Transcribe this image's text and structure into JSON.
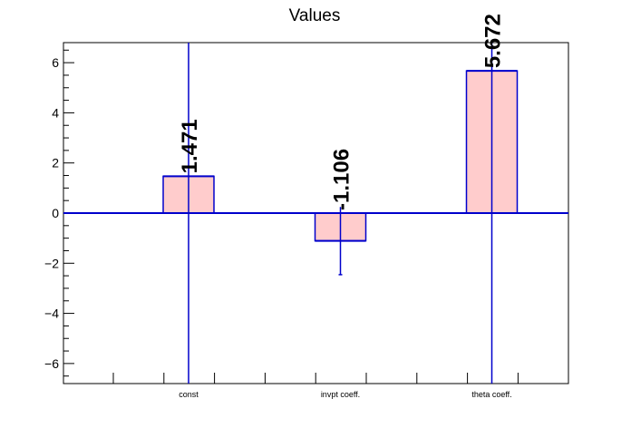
{
  "chart_data": {
    "type": "bar",
    "title": "Values",
    "categories": [
      "const",
      "invpt coeff.",
      "theta coeff."
    ],
    "values": [
      1.471,
      -1.106,
      5.672
    ],
    "value_labels": [
      "1.471",
      "-1.106",
      "5.672"
    ],
    "errors": [
      null,
      1.35,
      null
    ],
    "ylim": [
      -6.8,
      6.8
    ],
    "yticks": [
      -6,
      -4,
      -2,
      0,
      2,
      4,
      6
    ],
    "ytick_labels": [
      "−6",
      "−4",
      "−2",
      "0",
      "2",
      "4",
      "6"
    ],
    "grid": false,
    "bar_fill_color": "#ffcccc",
    "bar_edge_color": "#0000cc",
    "axis_color": "#000000"
  }
}
